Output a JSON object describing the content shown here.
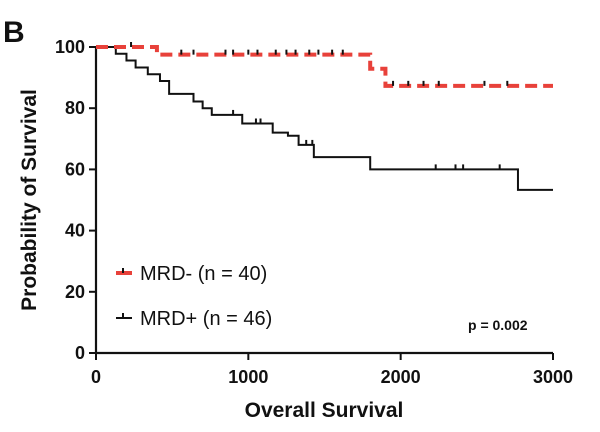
{
  "panel_label": "B",
  "chart_data": {
    "type": "line",
    "title": "",
    "xlabel": "Overall Survival",
    "ylabel": "Probability of Survival",
    "xlim": [
      0,
      3000
    ],
    "ylim": [
      0,
      100
    ],
    "xticks": [
      0,
      1000,
      2000,
      3000
    ],
    "yticks": [
      0,
      20,
      40,
      60,
      80,
      100
    ],
    "grid": false,
    "legend_position": "bottom-left",
    "annotation": "p = 0.002",
    "series": [
      {
        "name": "MRD- (n = 40)",
        "color": "#e8413a",
        "style": "dashed",
        "step_x": [
          0,
          400,
          1750,
          1800,
          1900,
          3000
        ],
        "step_y": [
          100,
          97.5,
          97.5,
          92.9,
          87.3,
          87.3
        ],
        "censor_x": [
          230,
          560,
          640,
          850,
          900,
          1000,
          1060,
          1180,
          1250,
          1310,
          1400,
          1460,
          1550,
          1620,
          1950,
          2050,
          2150,
          2250,
          2550,
          2700
        ]
      },
      {
        "name": "MRD+ (n = 46)",
        "color": "#111111",
        "style": "solid",
        "step_x": [
          0,
          130,
          200,
          260,
          340,
          420,
          480,
          540,
          640,
          700,
          760,
          840,
          960,
          1160,
          1260,
          1330,
          1430,
          1600,
          1800,
          2770,
          3000
        ],
        "step_y": [
          100,
          97.8,
          95.6,
          93.3,
          91.1,
          88.9,
          84.7,
          84.7,
          82.2,
          80.0,
          77.8,
          77.8,
          75.0,
          72.0,
          71.0,
          68.0,
          64.0,
          64.0,
          60.0,
          53.3,
          53.3
        ],
        "censor_x": [
          900,
          1050,
          1080,
          1380,
          1420,
          2230,
          2360,
          2410,
          2650
        ]
      }
    ]
  }
}
